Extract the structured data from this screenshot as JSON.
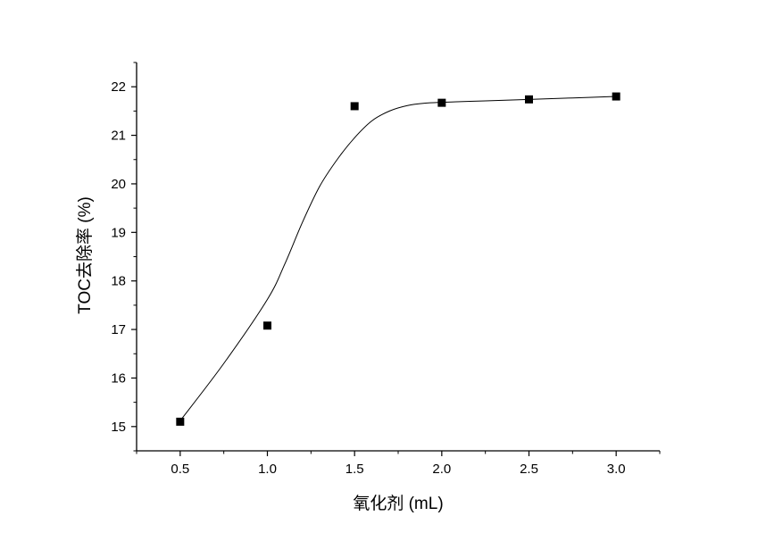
{
  "chart_data": {
    "type": "scatter",
    "title": "",
    "xlabel": "氧化剂 (mL)",
    "ylabel": "TOC去除率 (%)",
    "xlim": [
      0.25,
      3.25
    ],
    "ylim": [
      14.5,
      22.5
    ],
    "x_ticks": [
      0.5,
      1.0,
      1.5,
      2.0,
      2.5,
      3.0
    ],
    "x_tick_labels": [
      "0.5",
      "1.0",
      "1.5",
      "2.0",
      "2.5",
      "3.0"
    ],
    "y_ticks": [
      15,
      16,
      17,
      18,
      19,
      20,
      21,
      22
    ],
    "y_tick_labels": [
      "15",
      "16",
      "17",
      "18",
      "19",
      "20",
      "21",
      "22"
    ],
    "grid": false,
    "series": [
      {
        "marker": "square",
        "color": "#000000",
        "x": [
          0.5,
          1.0,
          1.5,
          2.0,
          2.5,
          3.0
        ],
        "y": [
          15.1,
          17.08,
          21.6,
          21.67,
          21.74,
          21.8
        ]
      }
    ],
    "fit_curve": {
      "color": "#000000",
      "x": [
        0.5,
        0.75,
        1.0,
        1.1,
        1.2,
        1.3,
        1.4,
        1.5,
        1.6,
        1.7,
        1.8,
        1.9,
        2.0,
        2.25,
        2.5,
        2.75,
        3.0
      ],
      "y": [
        15.12,
        16.3,
        17.62,
        18.35,
        19.2,
        19.95,
        20.5,
        20.95,
        21.3,
        21.5,
        21.61,
        21.66,
        21.68,
        21.71,
        21.74,
        21.77,
        21.8
      ]
    }
  }
}
